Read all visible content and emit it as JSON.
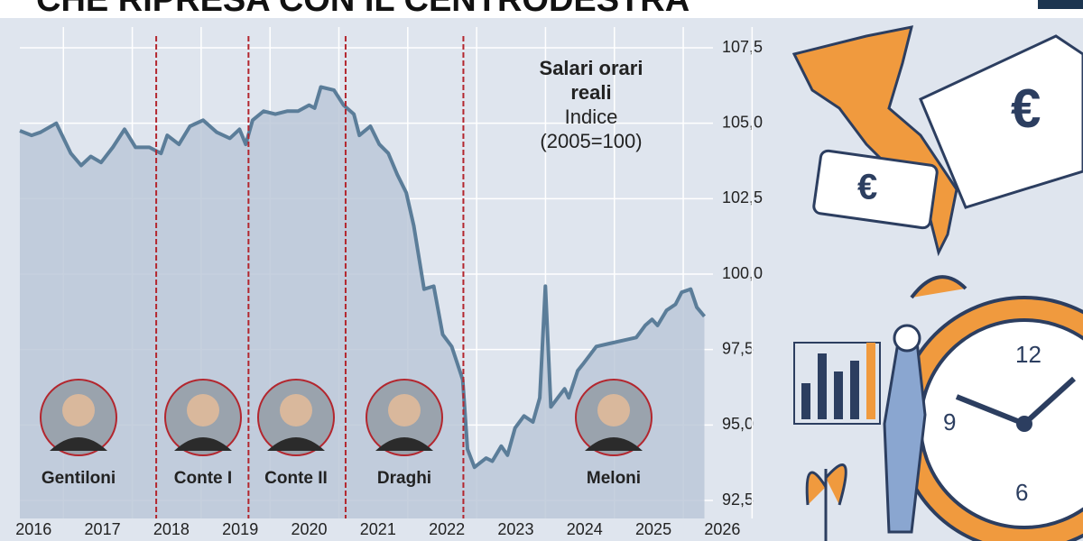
{
  "chart_data": {
    "type": "area",
    "title": "CHE RIPRESA CON IL CENTRODESTRA",
    "annotation_title": "Salari orari reali",
    "annotation_subtitle": "Indice (2005=100)",
    "line_color": "#5b7d99",
    "fill_color": "#bcc8d8",
    "divider_color": "#b3262e",
    "grid": true,
    "xlim": [
      2015.8,
      2026.1
    ],
    "xticks": [
      2016,
      2017,
      2018,
      2019,
      2020,
      2021,
      2022,
      2023,
      2024,
      2025,
      2026
    ],
    "ylim": [
      92.5,
      107.5
    ],
    "yticks": [
      {
        "value": 92.5,
        "label": "92,5"
      },
      {
        "value": 95,
        "label": "95,0"
      },
      {
        "value": 97.5,
        "label": "97,5"
      },
      {
        "value": 100,
        "label": "100,0"
      },
      {
        "value": 102.5,
        "label": "102,5"
      },
      {
        "value": 105,
        "label": "105,0"
      },
      {
        "value": 107.5,
        "label": "107,5"
      }
    ],
    "x": [
      2015.8,
      2015.97,
      2016.1,
      2016.33,
      2016.54,
      2016.69,
      2016.83,
      2016.98,
      2017.15,
      2017.32,
      2017.48,
      2017.68,
      2017.85,
      2017.94,
      2018.11,
      2018.27,
      2018.46,
      2018.66,
      2018.85,
      2018.99,
      2019.08,
      2019.18,
      2019.34,
      2019.51,
      2019.68,
      2019.84,
      2020.0,
      2020.08,
      2020.17,
      2020.36,
      2020.5,
      2020.65,
      2020.73,
      2020.89,
      2021.02,
      2021.15,
      2021.28,
      2021.41,
      2021.52,
      2021.67,
      2021.81,
      2021.94,
      2022.07,
      2022.23,
      2022.3,
      2022.4,
      2022.57,
      2022.66,
      2022.79,
      2022.88,
      2022.99,
      2023.12,
      2023.25,
      2023.35,
      2023.43,
      2023.51,
      2023.61,
      2023.71,
      2023.77,
      2023.9,
      2023.97,
      2024.07,
      2024.17,
      2024.36,
      2024.56,
      2024.75,
      2024.88,
      2024.98,
      2025.06,
      2025.19,
      2025.32,
      2025.41,
      2025.54,
      2025.63,
      2025.74
    ],
    "series": [
      {
        "name": "Salari orari reali",
        "values": [
          104.75,
          104.6,
          104.7,
          105.0,
          104.0,
          103.6,
          103.9,
          103.7,
          104.2,
          104.8,
          104.2,
          104.2,
          104.0,
          104.6,
          104.3,
          104.9,
          105.1,
          104.7,
          104.5,
          104.8,
          104.3,
          105.1,
          105.4,
          105.3,
          105.4,
          105.4,
          105.6,
          105.5,
          106.2,
          106.1,
          105.6,
          105.3,
          104.6,
          104.9,
          104.3,
          104.0,
          103.3,
          102.7,
          101.6,
          99.5,
          99.6,
          98.0,
          97.6,
          96.5,
          94.2,
          93.6,
          93.9,
          93.8,
          94.3,
          94.0,
          94.9,
          95.3,
          95.1,
          95.9,
          99.6,
          95.6,
          95.9,
          96.2,
          95.9,
          96.8,
          97.0,
          97.3,
          97.6,
          97.7,
          97.8,
          97.9,
          98.3,
          98.5,
          98.3,
          98.8,
          99.0,
          99.4,
          99.5,
          98.9,
          98.6
        ]
      }
    ],
    "dividers": [
      2017.78,
      2019.12,
      2020.53,
      2022.24
    ],
    "governments": [
      "Gentiloni",
      "Conte I",
      "Conte II",
      "Draghi",
      "Meloni"
    ]
  }
}
